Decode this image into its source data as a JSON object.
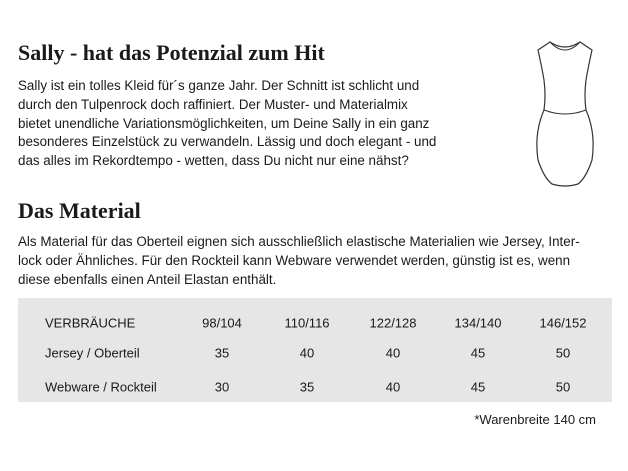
{
  "header": {
    "title": "Sally - hat das Potenzial zum Hit",
    "lines": [
      "Sally ist ein tolles Kleid für´s ganze Jahr. Der Schnitt ist schlicht und",
      "durch den Tulpenrock doch raffiniert. Der Muster- und Materialmix",
      "bietet unendliche Variationsmöglichkeiten, um Deine Sally in ein ganz",
      "besonderes Einzelstück zu verwandeln. Lässig und doch elegant - und",
      "das alles im Rekordtempo - wetten, dass Du nicht nur eine nähst?"
    ]
  },
  "material": {
    "title": "Das Material",
    "lines": [
      "Als Material für das Oberteil eignen sich ausschließlich elastische Materialien wie Jersey, Inter-",
      "lock oder  Ähnliches. Für den Rockteil kann Webware verwendet werden, günstig ist es, wenn",
      "diese ebenfalls einen Anteil Elastan enthält."
    ]
  },
  "table": {
    "header": [
      "VERBRÄUCHE",
      "98/104",
      "110/116",
      "122/128",
      "134/140",
      "146/152"
    ],
    "rows": [
      [
        "Jersey / Oberteil",
        35,
        40,
        40,
        45,
        50
      ],
      [
        "Webware / Rockteil",
        30,
        35,
        40,
        45,
        50
      ]
    ]
  },
  "footnote": "*Warenbreite 140 cm"
}
